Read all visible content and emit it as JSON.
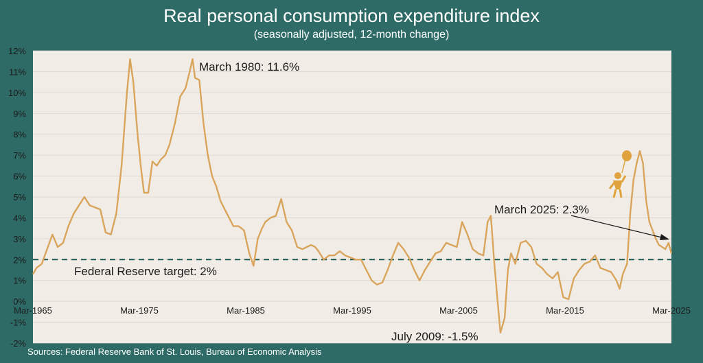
{
  "header": {
    "title": "Real personal consumption expenditure index",
    "subtitle": "(seasonally adjusted, 12-month change)"
  },
  "footer": {
    "source": "Sources: Federal Reserve Bank of St. Louis, Bureau of Economic Analysis"
  },
  "colors": {
    "background": "#2f6b66",
    "plot_area": "#f1ede6",
    "line": "#d9a55c",
    "target_line": "#1f5a52",
    "icon": "#e0a23c"
  },
  "icon": "person-with-balloon-icon",
  "chart_data": {
    "type": "line",
    "title": "Real personal consumption expenditure index",
    "subtitle": "(seasonally adjusted, 12-month change)",
    "x_tick_labels": [
      "Mar-1965",
      "Mar-1975",
      "Mar-1985",
      "Mar-1995",
      "Mar-2005",
      "Mar-2015",
      "Mar-2025"
    ],
    "x_ticks": [
      1965.17,
      1975.17,
      1985.17,
      1995.17,
      2005.17,
      2015.17,
      2025.17
    ],
    "xlim": [
      1965.17,
      2025.17
    ],
    "ylim": [
      -2,
      12
    ],
    "y_ticks": [
      -2,
      -1,
      0,
      1,
      2,
      3,
      4,
      5,
      6,
      7,
      8,
      9,
      10,
      11,
      12
    ],
    "y_tick_labels": [
      "-2%",
      "-1%",
      "0%",
      "1%",
      "2%",
      "3%",
      "4%",
      "5%",
      "6%",
      "7%",
      "8%",
      "9%",
      "10%",
      "11%",
      "12%"
    ],
    "grid": true,
    "reference_line": {
      "value": 2,
      "label": "Federal Reserve target: 2%",
      "style": "dashed"
    },
    "annotations": [
      {
        "text": "March 1980: 11.6%",
        "x": 1980.17,
        "y": 11.6
      },
      {
        "text": "July 2009: -1.5%",
        "x": 2009.5,
        "y": -1.5
      },
      {
        "text": "March 2025: 2.3%",
        "x": 2025.17,
        "y": 2.3
      }
    ],
    "series": [
      {
        "x": [
          1965.17,
          1965.5,
          1966.0,
          1966.5,
          1967.0,
          1967.5,
          1968.0,
          1968.5,
          1969.0,
          1969.5,
          1970.0,
          1970.5,
          1971.0,
          1971.5,
          1972.0,
          1972.5,
          1973.0,
          1973.5,
          1974.0,
          1974.3,
          1974.6,
          1975.0,
          1975.3,
          1975.6,
          1976.0,
          1976.4,
          1976.8,
          1977.2,
          1977.6,
          1978.0,
          1978.5,
          1979.0,
          1979.5,
          1979.9,
          1980.17,
          1980.4,
          1980.8,
          1981.2,
          1981.6,
          1982.0,
          1982.4,
          1982.8,
          1983.2,
          1983.6,
          1984.0,
          1984.5,
          1985.0,
          1985.5,
          1985.9,
          1986.3,
          1986.7,
          1987.0,
          1987.5,
          1988.0,
          1988.5,
          1989.0,
          1989.5,
          1990.0,
          1990.5,
          1990.9,
          1991.3,
          1991.7,
          1992.0,
          1992.5,
          1993.0,
          1993.5,
          1994.0,
          1994.5,
          1995.0,
          1995.5,
          1996.0,
          1996.5,
          1997.0,
          1997.5,
          1998.0,
          1998.5,
          1999.0,
          1999.5,
          2000.0,
          2000.5,
          2001.0,
          2001.5,
          2002.0,
          2002.5,
          2003.0,
          2003.5,
          2004.0,
          2004.5,
          2005.0,
          2005.5,
          2006.0,
          2006.5,
          2007.0,
          2007.5,
          2007.9,
          2008.2,
          2008.5,
          2008.8,
          2009.1,
          2009.5,
          2009.8,
          2010.1,
          2010.5,
          2011.0,
          2011.5,
          2012.0,
          2012.5,
          2013.0,
          2013.5,
          2014.0,
          2014.5,
          2015.0,
          2015.5,
          2016.0,
          2016.5,
          2017.0,
          2017.5,
          2018.0,
          2018.5,
          2019.0,
          2019.5,
          2020.0,
          2020.3,
          2020.6,
          2021.0,
          2021.3,
          2021.6,
          2021.9,
          2022.2,
          2022.5,
          2022.8,
          2023.1,
          2023.4,
          2023.7,
          2024.0,
          2024.3,
          2024.6,
          2024.9,
          2025.17
        ],
        "values": [
          1.3,
          1.6,
          1.8,
          2.5,
          3.2,
          2.6,
          2.8,
          3.6,
          4.2,
          4.6,
          5.0,
          4.6,
          4.5,
          4.4,
          3.3,
          3.2,
          4.2,
          6.5,
          10.0,
          11.6,
          10.5,
          8.0,
          6.5,
          5.2,
          5.2,
          6.7,
          6.5,
          6.8,
          7.0,
          7.5,
          8.5,
          9.8,
          10.2,
          11.0,
          11.6,
          10.7,
          10.6,
          8.5,
          7.0,
          6.0,
          5.5,
          4.8,
          4.4,
          4.0,
          3.6,
          3.6,
          3.4,
          2.3,
          1.7,
          3.0,
          3.5,
          3.8,
          4.0,
          4.1,
          4.9,
          3.8,
          3.4,
          2.6,
          2.5,
          2.6,
          2.7,
          2.6,
          2.4,
          2.0,
          2.2,
          2.2,
          2.4,
          2.2,
          2.1,
          2.0,
          2.0,
          1.5,
          1.0,
          0.8,
          0.9,
          1.5,
          2.2,
          2.8,
          2.5,
          2.1,
          1.5,
          1.0,
          1.5,
          1.9,
          2.3,
          2.4,
          2.8,
          2.7,
          2.6,
          3.8,
          3.2,
          2.5,
          2.3,
          2.2,
          3.8,
          4.1,
          2.0,
          0.2,
          -1.5,
          -0.8,
          1.5,
          2.3,
          1.8,
          2.8,
          2.9,
          2.6,
          1.8,
          1.6,
          1.3,
          1.1,
          1.4,
          0.2,
          0.1,
          1.1,
          1.5,
          1.8,
          1.9,
          2.2,
          1.6,
          1.5,
          1.4,
          1.0,
          0.6,
          1.3,
          1.8,
          4.2,
          5.8,
          6.6,
          7.2,
          6.6,
          4.8,
          3.8,
          3.4,
          3.0,
          2.7,
          2.6,
          2.5,
          2.8,
          2.3
        ]
      }
    ]
  }
}
